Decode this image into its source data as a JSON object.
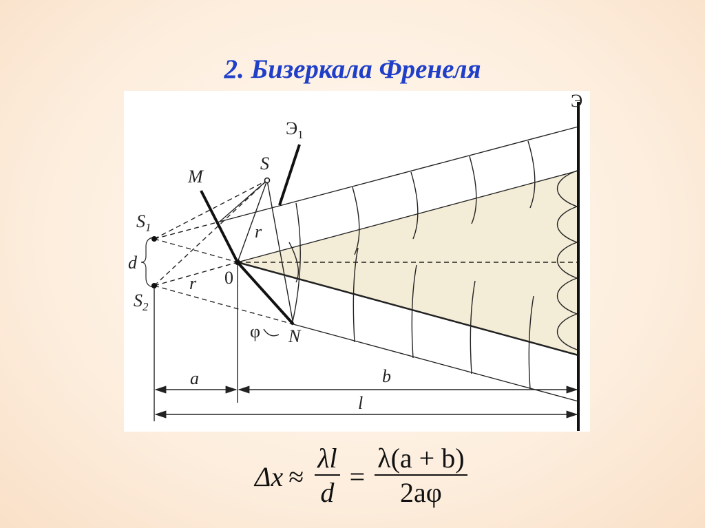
{
  "title": "2. Бизеркала Френеля",
  "diagram": {
    "labels": {
      "mirror_m": "M",
      "source": "S",
      "screen_small": "Э",
      "screen_small_sub": "1",
      "screen": "Э",
      "image1": "S",
      "image1_sub": "1",
      "image2": "S",
      "image2_sub": "2",
      "distance_d": "d",
      "radius_upper": "r",
      "radius_lower": "r",
      "origin": "0",
      "angle": "φ",
      "mirror_n": "N",
      "dim_a": "a",
      "dim_b": "b",
      "dim_l": "l"
    },
    "colors": {
      "interference_region": "#f3ecd6",
      "title": "#1f3fc8"
    }
  },
  "formula": {
    "lhs": "Δx",
    "approx": "≈",
    "frac1_num": "λl",
    "frac1_den": "d",
    "equals": "=",
    "frac2_num": "λ(a + b)",
    "frac2_den": "2aφ"
  }
}
